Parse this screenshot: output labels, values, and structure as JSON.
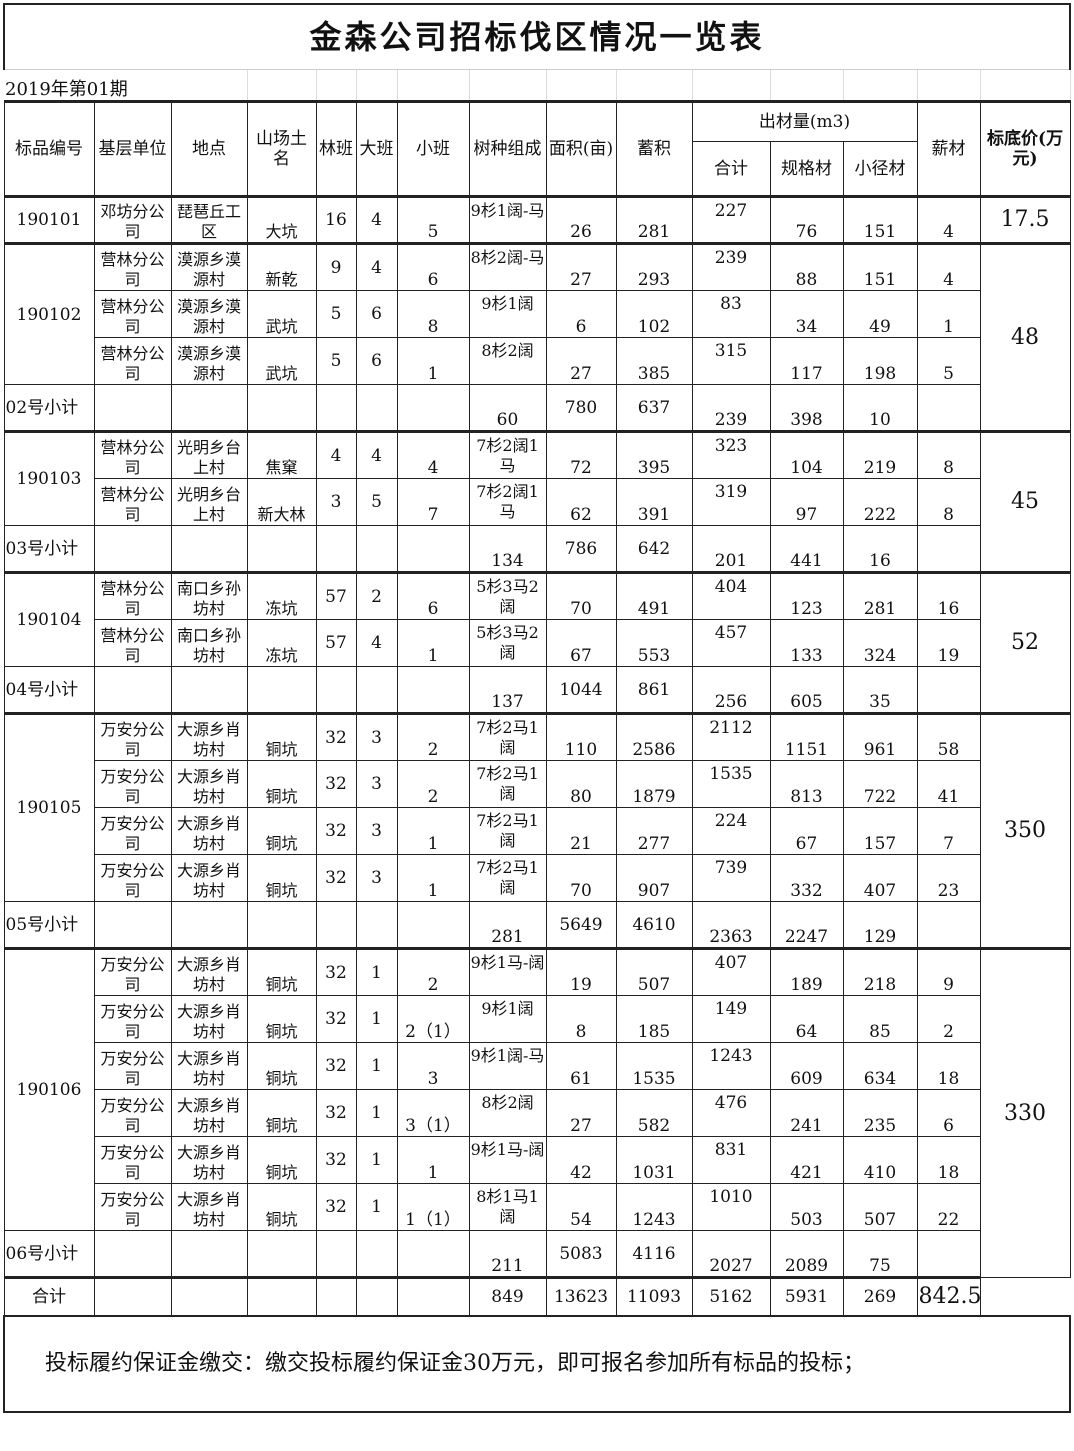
{
  "title": "金森公司招标伐区情况一览表",
  "period": "2019年第01期",
  "headers": {
    "code": "标品编号",
    "unit": "基层单位",
    "place": "地点",
    "field": "山场土名",
    "lin": "林班",
    "da": "大班",
    "xiao": "小班",
    "species": "树种组成",
    "area": "面积(亩)",
    "stock": "蓄积",
    "output": "出材量(m3)",
    "total": "合计",
    "spec": "规格材",
    "small": "小径材",
    "fuel": "薪材",
    "price": "标底价(万元)"
  },
  "groups": [
    {
      "code": "190101",
      "price": "17.5",
      "rows": [
        [
          "邓坊分公司",
          "琵琶丘工区",
          "大坑",
          "16",
          "4",
          "5",
          "9杉1阔-马",
          "26",
          "281",
          "227",
          "76",
          "151",
          "4"
        ]
      ]
    },
    {
      "code": "190102",
      "price": "48",
      "rows": [
        [
          "营林分公司",
          "漠源乡漠源村",
          "新乾",
          "9",
          "4",
          "6",
          "8杉2阔-马",
          "27",
          "293",
          "239",
          "88",
          "151",
          "4"
        ],
        [
          "营林分公司",
          "漠源乡漠源村",
          "武坑",
          "5",
          "6",
          "8",
          "9杉1阔",
          "6",
          "102",
          "83",
          "34",
          "49",
          "1"
        ],
        [
          "营林分公司",
          "漠源乡漠源村",
          "武坑",
          "5",
          "6",
          "1",
          "8杉2阔",
          "27",
          "385",
          "315",
          "117",
          "198",
          "5"
        ]
      ],
      "subtotal": {
        "label": "02号小计",
        "values": [
          "60",
          "780",
          "637",
          "239",
          "398",
          "10"
        ]
      }
    },
    {
      "code": "190103",
      "price": "45",
      "rows": [
        [
          "营林分公司",
          "光明乡台上村",
          "焦窠",
          "4",
          "4",
          "4",
          "7杉2阔1马",
          "72",
          "395",
          "323",
          "104",
          "219",
          "8"
        ],
        [
          "营林分公司",
          "光明乡台上村",
          "新大林",
          "3",
          "5",
          "7",
          "7杉2阔1马",
          "62",
          "391",
          "319",
          "97",
          "222",
          "8"
        ]
      ],
      "subtotal": {
        "label": "03号小计",
        "values": [
          "134",
          "786",
          "642",
          "201",
          "441",
          "16"
        ]
      }
    },
    {
      "code": "190104",
      "price": "52",
      "rows": [
        [
          "营林分公司",
          "南口乡孙坊村",
          "冻坑",
          "57",
          "2",
          "6",
          "5杉3马2阔",
          "70",
          "491",
          "404",
          "123",
          "281",
          "16"
        ],
        [
          "营林分公司",
          "南口乡孙坊村",
          "冻坑",
          "57",
          "4",
          "1",
          "5杉3马2阔",
          "67",
          "553",
          "457",
          "133",
          "324",
          "19"
        ]
      ],
      "subtotal": {
        "label": "04号小计",
        "values": [
          "137",
          "1044",
          "861",
          "256",
          "605",
          "35"
        ]
      }
    },
    {
      "code": "190105",
      "price": "350",
      "rows": [
        [
          "万安分公司",
          "大源乡肖坊村",
          "铜坑",
          "32",
          "3",
          "2",
          "7杉2马1阔",
          "110",
          "2586",
          "2112",
          "1151",
          "961",
          "58"
        ],
        [
          "万安分公司",
          "大源乡肖坊村",
          "铜坑",
          "32",
          "3",
          "2",
          "7杉2马1阔",
          "80",
          "1879",
          "1535",
          "813",
          "722",
          "41"
        ],
        [
          "万安分公司",
          "大源乡肖坊村",
          "铜坑",
          "32",
          "3",
          "1",
          "7杉2马1阔",
          "21",
          "277",
          "224",
          "67",
          "157",
          "7"
        ],
        [
          "万安分公司",
          "大源乡肖坊村",
          "铜坑",
          "32",
          "3",
          "1",
          "7杉2马1阔",
          "70",
          "907",
          "739",
          "332",
          "407",
          "23"
        ]
      ],
      "subtotal": {
        "label": "05号小计",
        "values": [
          "281",
          "5649",
          "4610",
          "2363",
          "2247",
          "129"
        ]
      }
    },
    {
      "code": "190106",
      "price": "330",
      "rows": [
        [
          "万安分公司",
          "大源乡肖坊村",
          "铜坑",
          "32",
          "1",
          "2",
          "9杉1马-阔",
          "19",
          "507",
          "407",
          "189",
          "218",
          "9"
        ],
        [
          "万安分公司",
          "大源乡肖坊村",
          "铜坑",
          "32",
          "1",
          "2（1）",
          "9杉1阔",
          "8",
          "185",
          "149",
          "64",
          "85",
          "2"
        ],
        [
          "万安分公司",
          "大源乡肖坊村",
          "铜坑",
          "32",
          "1",
          "3",
          "9杉1阔-马",
          "61",
          "1535",
          "1243",
          "609",
          "634",
          "18"
        ],
        [
          "万安分公司",
          "大源乡肖坊村",
          "铜坑",
          "32",
          "1",
          "3（1）",
          "8杉2阔",
          "27",
          "582",
          "476",
          "241",
          "235",
          "6"
        ],
        [
          "万安分公司",
          "大源乡肖坊村",
          "铜坑",
          "32",
          "1",
          "1",
          "9杉1马-阔",
          "42",
          "1031",
          "831",
          "421",
          "410",
          "18"
        ],
        [
          "万安分公司",
          "大源乡肖坊村",
          "铜坑",
          "32",
          "1",
          "1（1）",
          "8杉1马1阔",
          "54",
          "1243",
          "1010",
          "503",
          "507",
          "22"
        ]
      ],
      "subtotal": {
        "label": "06号小计",
        "values": [
          "211",
          "5083",
          "4116",
          "2027",
          "2089",
          "75"
        ]
      }
    }
  ],
  "grand_total": {
    "label": "合计",
    "values": [
      "849",
      "13623",
      "11093",
      "5162",
      "5931",
      "269"
    ],
    "price": "842.5"
  },
  "footer": "投标履约保证金缴交：缴交投标履约保证金30万元，即可报名参加所有标品的投标；"
}
